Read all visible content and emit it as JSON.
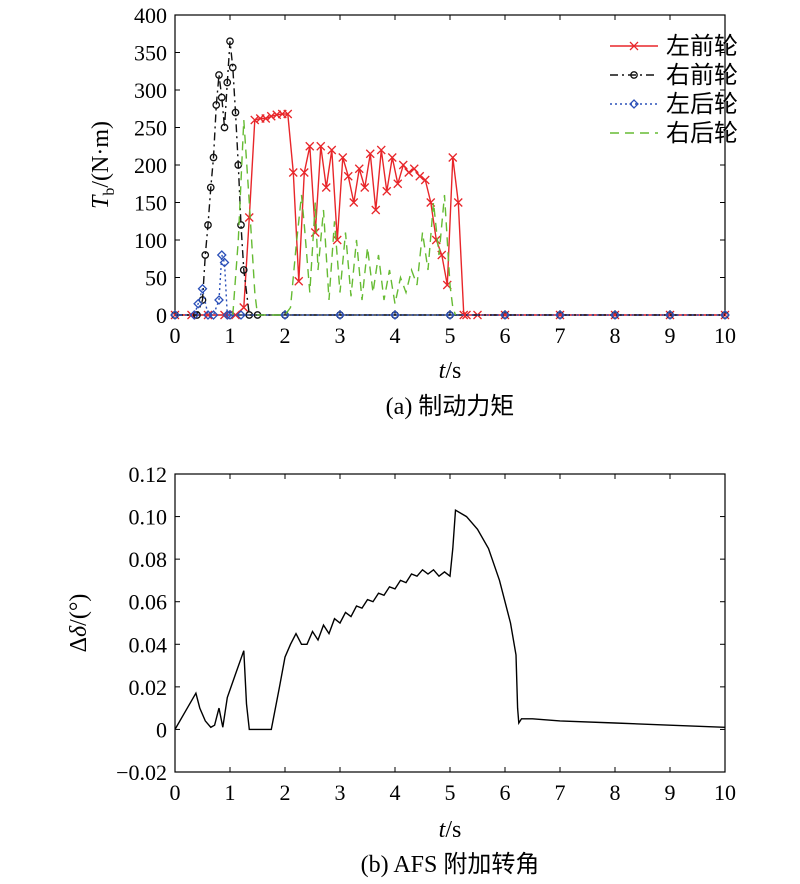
{
  "chart_data": [
    {
      "type": "line",
      "caption": "(a) 制动力矩",
      "xlabel_italic": "t",
      "xlabel_unit": "/s",
      "ylabel_main": "T",
      "ylabel_sub": "b",
      "ylabel_unit": "/(N·m)",
      "xlim": [
        0,
        10
      ],
      "ylim": [
        0,
        400
      ],
      "xticks": [
        "0",
        "1",
        "2",
        "3",
        "4",
        "5",
        "6",
        "7",
        "8",
        "9",
        "10"
      ],
      "yticks": [
        "0",
        "50",
        "100",
        "150",
        "200",
        "250",
        "300",
        "350",
        "400"
      ],
      "legend_position": "top-right",
      "series": [
        {
          "name": "左前轮",
          "color": "#e8262a",
          "style": "solid",
          "marker": "x",
          "x": [
            0,
            0.3,
            0.6,
            0.9,
            1.1,
            1.25,
            1.35,
            1.45,
            1.55,
            1.65,
            1.75,
            1.85,
            1.95,
            2.05,
            2.15,
            2.25,
            2.35,
            2.45,
            2.55,
            2.65,
            2.75,
            2.85,
            2.95,
            3.05,
            3.15,
            3.25,
            3.35,
            3.45,
            3.55,
            3.65,
            3.75,
            3.85,
            3.95,
            4.05,
            4.15,
            4.25,
            4.35,
            4.45,
            4.55,
            4.65,
            4.75,
            4.85,
            4.95,
            5.05,
            5.15,
            5.25,
            5.3,
            5.5,
            6,
            7,
            8,
            9,
            10
          ],
          "y": [
            0,
            0,
            0,
            0,
            0,
            10,
            130,
            260,
            262,
            262,
            265,
            267,
            268,
            268,
            190,
            45,
            190,
            225,
            110,
            225,
            170,
            220,
            100,
            210,
            185,
            150,
            195,
            170,
            215,
            140,
            220,
            165,
            210,
            175,
            200,
            190,
            195,
            185,
            180,
            150,
            100,
            80,
            40,
            210,
            150,
            0,
            0,
            0,
            0,
            0,
            0,
            0,
            0
          ]
        },
        {
          "name": "右前轮",
          "color": "#111111",
          "style": "dashdot",
          "marker": "o",
          "x": [
            0,
            0.4,
            0.5,
            0.55,
            0.6,
            0.65,
            0.7,
            0.75,
            0.8,
            0.85,
            0.9,
            0.95,
            1.0,
            1.05,
            1.1,
            1.15,
            1.2,
            1.25,
            1.35,
            1.5,
            2,
            3,
            4,
            5,
            6,
            7,
            8,
            9,
            10
          ],
          "y": [
            0,
            0,
            20,
            80,
            120,
            170,
            210,
            280,
            320,
            290,
            250,
            310,
            365,
            330,
            270,
            200,
            120,
            60,
            0,
            0,
            0,
            0,
            0,
            0,
            0,
            0,
            0,
            0,
            0
          ]
        },
        {
          "name": "左后轮",
          "color": "#2b50b8",
          "style": "dotted",
          "marker": "diamond",
          "x": [
            0,
            0.35,
            0.42,
            0.5,
            0.6,
            0.7,
            0.8,
            0.85,
            0.9,
            0.95,
            1.0,
            1.2,
            2,
            3,
            4,
            5,
            6,
            7,
            8,
            9,
            10
          ],
          "y": [
            0,
            0,
            15,
            35,
            0,
            0,
            20,
            80,
            70,
            0,
            0,
            0,
            0,
            0,
            0,
            0,
            0,
            0,
            0,
            0,
            0
          ]
        },
        {
          "name": "右后轮",
          "color": "#66bb33",
          "style": "dashed",
          "marker": "none",
          "x": [
            1.05,
            1.15,
            1.25,
            1.35,
            1.45,
            1.5,
            2.0,
            2.1,
            2.2,
            2.3,
            2.35,
            2.45,
            2.55,
            2.6,
            2.7,
            2.8,
            2.9,
            3.0,
            3.1,
            3.2,
            3.3,
            3.4,
            3.5,
            3.6,
            3.7,
            3.8,
            3.9,
            4.0,
            4.1,
            4.2,
            4.3,
            4.4,
            4.5,
            4.6,
            4.7,
            4.8,
            4.9,
            5.0,
            5.05,
            5.1
          ],
          "y": [
            0,
            100,
            260,
            150,
            30,
            0,
            0,
            10,
            90,
            160,
            120,
            30,
            150,
            60,
            140,
            20,
            125,
            30,
            110,
            25,
            100,
            20,
            90,
            30,
            80,
            20,
            60,
            15,
            50,
            30,
            60,
            40,
            110,
            60,
            150,
            80,
            160,
            40,
            10,
            0
          ]
        }
      ]
    },
    {
      "type": "line",
      "caption": "(b) AFS 附加转角",
      "xlabel_italic": "t",
      "xlabel_unit": "/s",
      "ylabel_prefix": "Δ",
      "ylabel_main": "δ",
      "ylabel_unit": "/(°)",
      "xlim": [
        0,
        10
      ],
      "ylim": [
        -0.02,
        0.12
      ],
      "xticks": [
        "0",
        "1",
        "2",
        "3",
        "4",
        "5",
        "6",
        "7",
        "8",
        "9",
        "10"
      ],
      "yticks": [
        "−0.02",
        "0",
        "0.02",
        "0.04",
        "0.06",
        "0.08",
        "0.10",
        "0.12"
      ],
      "series": [
        {
          "color": "#000000",
          "x": [
            0,
            0.2,
            0.38,
            0.45,
            0.55,
            0.65,
            0.72,
            0.8,
            0.87,
            0.95,
            1.1,
            1.25,
            1.3,
            1.35,
            1.5,
            1.7,
            1.75,
            1.9,
            2.0,
            2.1,
            2.2,
            2.3,
            2.4,
            2.5,
            2.6,
            2.7,
            2.8,
            2.9,
            3.0,
            3.1,
            3.2,
            3.3,
            3.4,
            3.5,
            3.6,
            3.7,
            3.8,
            3.9,
            4.0,
            4.1,
            4.2,
            4.3,
            4.4,
            4.5,
            4.6,
            4.7,
            4.8,
            4.9,
            5.0,
            5.05,
            5.1,
            5.3,
            5.5,
            5.7,
            5.9,
            6.1,
            6.2,
            6.23,
            6.25,
            6.3,
            6.5,
            7,
            8,
            9,
            10
          ],
          "y": [
            0,
            0.009,
            0.017,
            0.01,
            0.004,
            0.001,
            0.002,
            0.01,
            0.001,
            0.015,
            0.026,
            0.037,
            0.012,
            0,
            0,
            0,
            0,
            0.02,
            0.034,
            0.04,
            0.045,
            0.04,
            0.04,
            0.046,
            0.042,
            0.049,
            0.045,
            0.052,
            0.05,
            0.055,
            0.053,
            0.058,
            0.057,
            0.061,
            0.06,
            0.064,
            0.063,
            0.067,
            0.066,
            0.07,
            0.069,
            0.073,
            0.072,
            0.075,
            0.073,
            0.075,
            0.072,
            0.074,
            0.072,
            0.085,
            0.103,
            0.1,
            0.094,
            0.085,
            0.07,
            0.05,
            0.035,
            0.01,
            0.003,
            0.005,
            0.005,
            0.004,
            0.003,
            0.002,
            0.001
          ]
        }
      ]
    }
  ]
}
